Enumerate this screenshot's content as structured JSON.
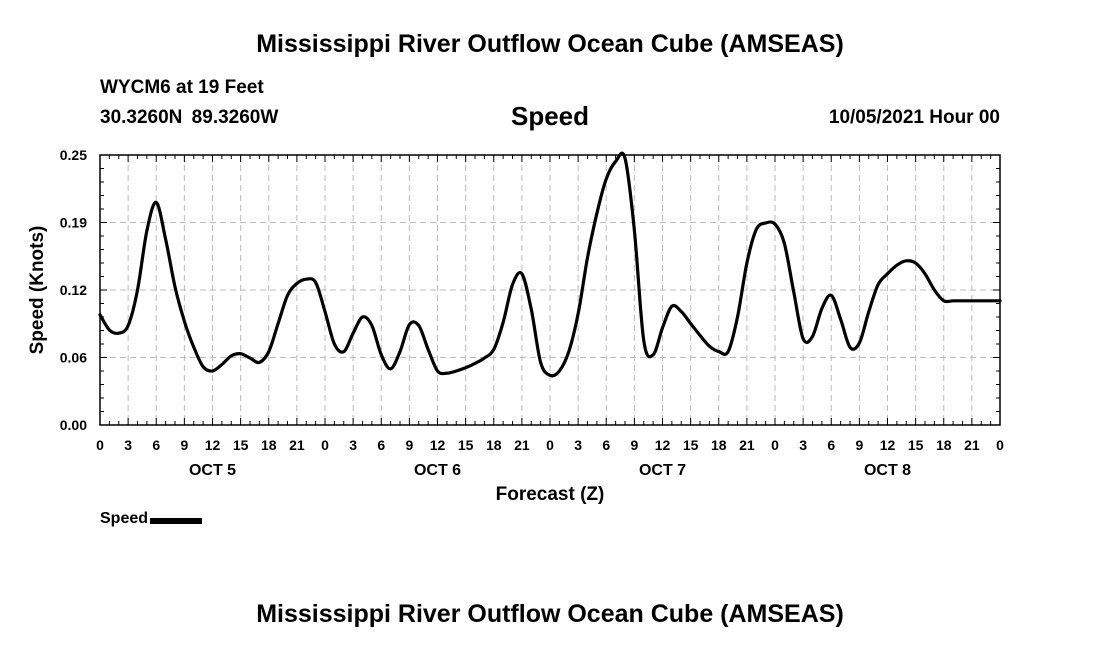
{
  "header": {
    "title": "Mississippi River Outflow Ocean Cube (AMSEAS)",
    "station": "WYCM6 at 19 Feet",
    "coordinates": "30.3260N  89.3260W",
    "variable": "Speed",
    "date": "10/05/2021 Hour 00"
  },
  "footer": {
    "title": "Mississippi River Outflow Ocean Cube (AMSEAS)"
  },
  "legend": {
    "label": "Speed",
    "color": "#000000"
  },
  "chart_data": {
    "type": "line",
    "title": "Speed",
    "xlabel": "Forecast (Z)",
    "ylabel": "Speed (Knots)",
    "ylim": [
      0,
      0.25
    ],
    "yticks": [
      "0.00",
      "0.06",
      "0.12",
      "0.19",
      "0.25"
    ],
    "ytick_values": [
      0,
      0.0625,
      0.125,
      0.1875,
      0.25
    ],
    "xlim": [
      0,
      96
    ],
    "xtick_labels": [
      "0",
      "3",
      "6",
      "9",
      "12",
      "15",
      "18",
      "21",
      "0",
      "3",
      "6",
      "9",
      "12",
      "15",
      "18",
      "21",
      "0",
      "3",
      "6",
      "9",
      "12",
      "15",
      "18",
      "21",
      "0",
      "3",
      "6",
      "9",
      "12",
      "15",
      "18",
      "21",
      "0"
    ],
    "day_labels": [
      {
        "label": "OCT 5",
        "hour": 12
      },
      {
        "label": "OCT 6",
        "hour": 36
      },
      {
        "label": "OCT 7",
        "hour": 60
      },
      {
        "label": "OCT 8",
        "hour": 84
      }
    ],
    "grid": true,
    "legend_position": "bottom-left",
    "series": [
      {
        "name": "Speed",
        "color": "#000000",
        "x": [
          0,
          1,
          2,
          3,
          4,
          5,
          6,
          7,
          8,
          9,
          10,
          11,
          12,
          13,
          14,
          15,
          16,
          17,
          18,
          19,
          20,
          21,
          22,
          23,
          24,
          25,
          26,
          27,
          28,
          29,
          30,
          31,
          32,
          33,
          34,
          35,
          36,
          37,
          38,
          39,
          40,
          41,
          42,
          43,
          44,
          45,
          46,
          47,
          48,
          49,
          50,
          51,
          52,
          53,
          54,
          55,
          56,
          57,
          58,
          59,
          60,
          61,
          62,
          63,
          64,
          65,
          66,
          67,
          68,
          69,
          70,
          71,
          72,
          73,
          74,
          75,
          76,
          77,
          78,
          79,
          80,
          81,
          82,
          83,
          84,
          85,
          86,
          87,
          88,
          89,
          90,
          91,
          92,
          93,
          94,
          95,
          96
        ],
        "values": [
          0.102,
          0.088,
          0.085,
          0.092,
          0.125,
          0.18,
          0.206,
          0.172,
          0.128,
          0.096,
          0.072,
          0.054,
          0.05,
          0.056,
          0.064,
          0.066,
          0.062,
          0.058,
          0.068,
          0.094,
          0.12,
          0.131,
          0.135,
          0.132,
          0.105,
          0.075,
          0.068,
          0.085,
          0.1,
          0.092,
          0.065,
          0.052,
          0.068,
          0.093,
          0.092,
          0.07,
          0.05,
          0.048,
          0.05,
          0.053,
          0.057,
          0.062,
          0.07,
          0.095,
          0.13,
          0.14,
          0.107,
          0.058,
          0.046,
          0.05,
          0.068,
          0.103,
          0.155,
          0.196,
          0.228,
          0.244,
          0.247,
          0.18,
          0.078,
          0.065,
          0.09,
          0.11,
          0.105,
          0.094,
          0.083,
          0.073,
          0.068,
          0.068,
          0.1,
          0.15,
          0.181,
          0.187,
          0.186,
          0.168,
          0.123,
          0.08,
          0.082,
          0.108,
          0.12,
          0.098,
          0.072,
          0.076,
          0.105,
          0.13,
          0.14,
          0.148,
          0.152,
          0.15,
          0.14,
          0.125,
          0.115,
          0.115,
          0.115,
          0.115,
          0.115,
          0.115,
          0.115
        ]
      }
    ]
  }
}
